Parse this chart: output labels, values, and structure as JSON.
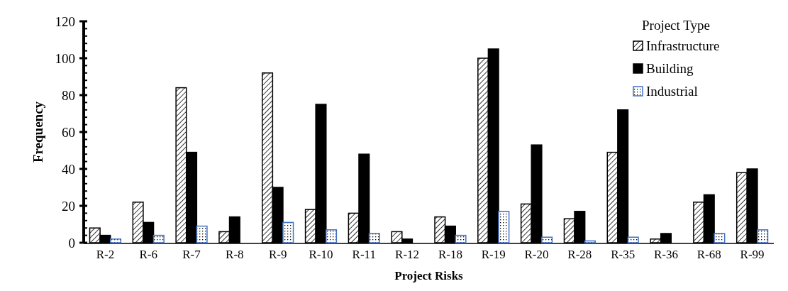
{
  "chart_data": {
    "type": "bar",
    "xlabel": "Project Risks",
    "ylabel": "Frequency",
    "legend_title": "Project Type",
    "legend": "top right",
    "grid": false,
    "categories": [
      "R-2",
      "R-6",
      "R-7",
      "R-8",
      "R-9",
      "R-10",
      "R-11",
      "R-12",
      "R-18",
      "R-19",
      "R-20",
      "R-28",
      "R-35",
      "R-36",
      "R-68",
      "R-99"
    ],
    "ylim": [
      0,
      120
    ],
    "yticks": [
      0,
      20,
      40,
      60,
      80,
      100,
      120
    ],
    "series": [
      {
        "name": "Infrastructure",
        "color": "#000000",
        "values": [
          8,
          22,
          84,
          6,
          92,
          18,
          16,
          6,
          14,
          100,
          21,
          13,
          49,
          2,
          22,
          38
        ]
      },
      {
        "name": "Building",
        "color": "#000000",
        "values": [
          4,
          11,
          49,
          14,
          30,
          75,
          48,
          2,
          9,
          105,
          53,
          17,
          72,
          5,
          26,
          40
        ]
      },
      {
        "name": "Industrial",
        "color": "#4472c4",
        "values": [
          2,
          4,
          9,
          null,
          11,
          7,
          5,
          null,
          4,
          17,
          3,
          1,
          3,
          null,
          5,
          7
        ]
      }
    ]
  }
}
